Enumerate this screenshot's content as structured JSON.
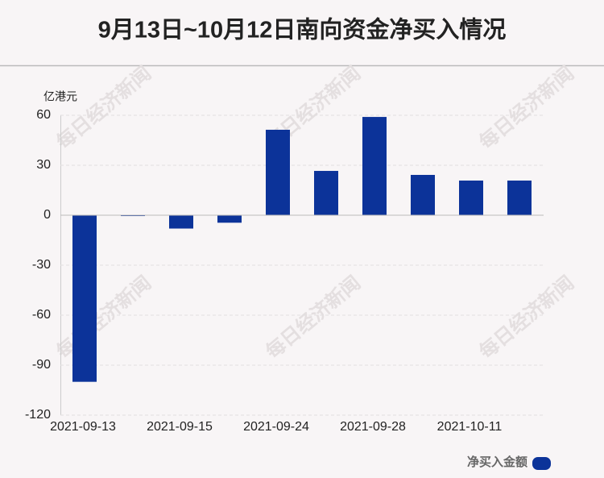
{
  "chart_data": {
    "type": "bar",
    "title": "9月13日~10月12日南向资金净买入情况",
    "y_unit": "亿港元",
    "watermark": "每日经济新闻",
    "categories": [
      "2021-09-13",
      null,
      "2021-09-15",
      null,
      "2021-09-24",
      null,
      "2021-09-28",
      null,
      "2021-10-11",
      null
    ],
    "series": [
      {
        "name": "净买入金额",
        "color": "#0c3399",
        "values": [
          -100,
          -0.5,
          -8,
          -4.5,
          51.3,
          26.6,
          59,
          24.2,
          20.8,
          20.8
        ]
      }
    ],
    "ylim": [
      -120,
      60
    ],
    "yticks": [
      -120,
      -90,
      -60,
      -30,
      0,
      30,
      60
    ],
    "grid": true,
    "legend": "bottom-right"
  }
}
